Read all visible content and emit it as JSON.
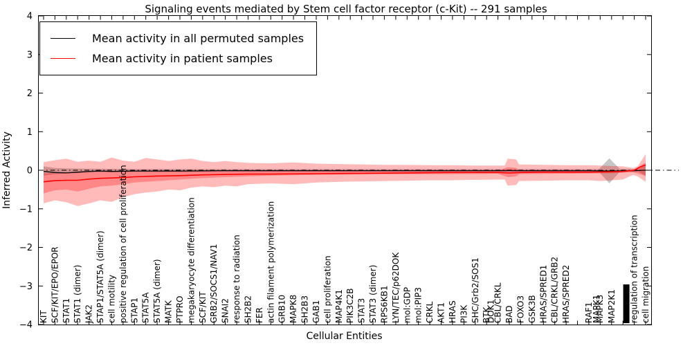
{
  "figure": {
    "title": "Signaling events mediated by Stem cell factor receptor (c-Kit) -- 291 samples",
    "xlabel": "Cellular Entities",
    "ylabel": "Inferred Activity",
    "samples_count": "291"
  },
  "legend": {
    "entries": [
      {
        "label": "Mean activity in all permuted samples",
        "color": "#000000"
      },
      {
        "label": "Mean activity in patient samples",
        "color": "#ff0000"
      }
    ]
  },
  "chart_data": {
    "type": "line",
    "title": "Signaling events mediated by Stem cell factor receptor (c-Kit) -- 291 samples",
    "xlabel": "Cellular Entities",
    "ylabel": "Inferred Activity",
    "ylim": [
      -4,
      4
    ],
    "grid": false,
    "legend_position": "upper left",
    "y_ticks": [
      {
        "v": 4,
        "label": "4"
      },
      {
        "v": 3,
        "label": "3"
      },
      {
        "v": 2,
        "label": "2"
      },
      {
        "v": 1,
        "label": "1"
      },
      {
        "v": 0,
        "label": "0"
      },
      {
        "v": -1,
        "label": "−1"
      },
      {
        "v": -2,
        "label": "−2"
      },
      {
        "v": -3,
        "label": "−3"
      },
      {
        "v": -4,
        "label": "−4"
      }
    ],
    "zero_line": {
      "y": 0,
      "style": "dash-dot",
      "color": "#000000"
    },
    "x_tick_labels": [
      {
        "label": "KIT",
        "i": 0
      },
      {
        "label": "SCF/KIT/EPO/EPOR",
        "i": 1
      },
      {
        "label": "STAT1",
        "i": 2
      },
      {
        "label": "STAT1 (dimer)",
        "i": 3
      },
      {
        "label": "JAK2",
        "i": 4
      },
      {
        "label": "STAP1/STAT5A (dimer)",
        "i": 5
      },
      {
        "label": "cell motility",
        "i": 6
      },
      {
        "label": "positive regulation of cell proliferation",
        "i": 7
      },
      {
        "label": "STAP1",
        "i": 8
      },
      {
        "label": "STAT5A",
        "i": 9
      },
      {
        "label": "STAT5A (dimer)",
        "i": 10
      },
      {
        "label": "MATK",
        "i": 11
      },
      {
        "label": "PTPRO",
        "i": 12
      },
      {
        "label": "megakaryocyte differentiation",
        "i": 13
      },
      {
        "label": "SCF/KIT",
        "i": 14
      },
      {
        "label": "GRB2/SOCS1/NAV1",
        "i": 15
      },
      {
        "label": "SNAI2",
        "i": 16
      },
      {
        "label": "response to radiation",
        "i": 17
      },
      {
        "label": "SH2B2",
        "i": 18
      },
      {
        "label": "FER",
        "i": 19
      },
      {
        "label": "actin filament polymerization",
        "i": 20
      },
      {
        "label": "GRB10",
        "i": 21
      },
      {
        "label": "MAPK8",
        "i": 22
      },
      {
        "label": "SH2B3",
        "i": 23
      },
      {
        "label": "GAB1",
        "i": 24
      },
      {
        "label": "cell proliferation",
        "i": 25
      },
      {
        "label": "MAP4K1",
        "i": 26
      },
      {
        "label": "PIK3C2B",
        "i": 27
      },
      {
        "label": "STAT3",
        "i": 28
      },
      {
        "label": "STAT3 (dimer)",
        "i": 29
      },
      {
        "label": "RPS6KB1",
        "i": 30
      },
      {
        "label": "LYN/TEC/p62DOK",
        "i": 31
      },
      {
        "label": "mol:GDP",
        "i": 32
      },
      {
        "label": "mol:PIP3",
        "i": 33
      },
      {
        "label": "CRKL",
        "i": 34
      },
      {
        "label": "AKT1",
        "i": 35
      },
      {
        "label": "HRAS",
        "i": 36
      },
      {
        "label": "PI3K",
        "i": 37
      },
      {
        "label": "SHC/Grb2/SOS1",
        "i": 38
      },
      {
        "label": "BTK",
        "i": 39
      },
      {
        "label": "DOK1",
        "i": 39.38
      },
      {
        "label": "CBL/CRKL",
        "i": 40
      },
      {
        "label": "BAD",
        "i": 41
      },
      {
        "label": "FOXO3",
        "i": 42
      },
      {
        "label": "GSK3B",
        "i": 43
      },
      {
        "label": "HRAS/SPRED1",
        "i": 44
      },
      {
        "label": "CBL/CRKL/GRB2",
        "i": 45
      },
      {
        "label": "HRAS/SPRED2",
        "i": 46
      },
      {
        "label": "RAF1",
        "i": 48
      },
      {
        "label": "MAPK1",
        "i": 48.68
      },
      {
        "label": "MAPK3",
        "i": 48.98
      },
      {
        "label": "MAP2K1",
        "i": 50
      },
      {
        "label": "regulation of transcription",
        "i": 52
      },
      {
        "label": "cell migration",
        "i": 53
      }
    ],
    "overlap_blob": {
      "i": 51.3,
      "note": "several unreadable overlapping tick labels",
      "width": 9,
      "height": 56
    },
    "series": [
      {
        "name": "permuted-band",
        "type": "band",
        "color": "rgba(128,128,128,0.45)",
        "upper": [
          [
            0,
            0.1
          ],
          [
            1,
            0.06
          ],
          [
            2,
            0.05
          ],
          [
            4,
            0.04
          ],
          [
            8,
            0.03
          ],
          [
            20,
            0.03
          ],
          [
            40,
            0.03
          ],
          [
            48.9,
            0.03
          ],
          [
            49.8,
            0.31
          ],
          [
            50.7,
            0.04
          ],
          [
            51.5,
            0.03
          ],
          [
            52.4,
            0.03
          ],
          [
            53,
            0.13
          ]
        ],
        "lower": [
          [
            0,
            -0.14
          ],
          [
            1,
            -0.1
          ],
          [
            2,
            -0.08
          ],
          [
            4,
            -0.06
          ],
          [
            8,
            -0.05
          ],
          [
            20,
            -0.04
          ],
          [
            40,
            -0.04
          ],
          [
            48.9,
            -0.04
          ],
          [
            49.8,
            -0.34
          ],
          [
            50.7,
            -0.05
          ],
          [
            51.5,
            -0.04
          ],
          [
            52.4,
            -0.04
          ],
          [
            53,
            -0.15
          ]
        ]
      },
      {
        "name": "patient-band-outer",
        "type": "band",
        "color": "rgba(255,0,0,0.27)",
        "upper": [
          [
            0,
            0.21
          ],
          [
            1,
            0.26
          ],
          [
            2,
            0.3
          ],
          [
            3,
            0.22
          ],
          [
            4,
            0.25
          ],
          [
            5,
            0.22
          ],
          [
            6,
            0.33
          ],
          [
            7,
            0.25
          ],
          [
            8,
            0.22
          ],
          [
            9,
            0.32
          ],
          [
            10,
            0.28
          ],
          [
            11,
            0.24
          ],
          [
            12,
            0.28
          ],
          [
            13,
            0.3
          ],
          [
            14,
            0.24
          ],
          [
            15,
            0.21
          ],
          [
            16,
            0.24
          ],
          [
            17,
            0.21
          ],
          [
            18,
            0.19
          ],
          [
            20,
            0.18
          ],
          [
            22,
            0.2
          ],
          [
            24,
            0.17
          ],
          [
            26,
            0.16
          ],
          [
            28,
            0.15
          ],
          [
            30,
            0.14
          ],
          [
            32,
            0.14
          ],
          [
            34,
            0.13
          ],
          [
            36,
            0.13
          ],
          [
            38,
            0.12
          ],
          [
            40.6,
            0.12
          ],
          [
            40.85,
            0.3
          ],
          [
            41.6,
            0.28
          ],
          [
            41.85,
            0.15
          ],
          [
            44,
            0.14
          ],
          [
            46,
            0.13
          ],
          [
            48,
            0.13
          ],
          [
            49,
            0.12
          ],
          [
            50,
            0.11
          ],
          [
            51,
            0.1
          ],
          [
            51.9,
            0.06
          ],
          [
            52.3,
            0.1
          ],
          [
            53,
            0.42
          ]
        ],
        "lower": [
          [
            0,
            -0.86
          ],
          [
            1,
            -0.78
          ],
          [
            2,
            -0.83
          ],
          [
            3,
            -0.93
          ],
          [
            4,
            -0.86
          ],
          [
            5,
            -0.78
          ],
          [
            6,
            -0.82
          ],
          [
            7,
            -0.7
          ],
          [
            8,
            -0.62
          ],
          [
            9,
            -0.58
          ],
          [
            10,
            -0.55
          ],
          [
            11,
            -0.5
          ],
          [
            12,
            -0.52
          ],
          [
            13,
            -0.45
          ],
          [
            14,
            -0.42
          ],
          [
            15,
            -0.44
          ],
          [
            16,
            -0.4
          ],
          [
            17,
            -0.42
          ],
          [
            18,
            -0.36
          ],
          [
            20,
            -0.34
          ],
          [
            22,
            -0.36
          ],
          [
            24,
            -0.32
          ],
          [
            26,
            -0.3
          ],
          [
            28,
            -0.29
          ],
          [
            30,
            -0.28
          ],
          [
            32,
            -0.27
          ],
          [
            34,
            -0.26
          ],
          [
            36,
            -0.26
          ],
          [
            38,
            -0.25
          ],
          [
            40.6,
            -0.24
          ],
          [
            40.85,
            -0.4
          ],
          [
            41.6,
            -0.38
          ],
          [
            41.85,
            -0.28
          ],
          [
            44,
            -0.27
          ],
          [
            46,
            -0.26
          ],
          [
            48,
            -0.26
          ],
          [
            49,
            -0.28
          ],
          [
            50,
            -0.26
          ],
          [
            51,
            -0.24
          ],
          [
            51.9,
            -0.12
          ],
          [
            52.3,
            -0.16
          ],
          [
            53,
            -0.3
          ]
        ]
      },
      {
        "name": "patient-band-inner",
        "type": "band",
        "color": "rgba(255,0,0,0.27)",
        "upper": [
          [
            0,
            -0.08
          ],
          [
            2,
            -0.06
          ],
          [
            4,
            -0.05
          ],
          [
            6,
            -0.04
          ],
          [
            8,
            -0.04
          ],
          [
            12,
            -0.03
          ],
          [
            16,
            -0.03
          ],
          [
            20,
            -0.02
          ],
          [
            30,
            -0.02
          ],
          [
            40,
            -0.02
          ],
          [
            40.85,
            0.08
          ],
          [
            41.6,
            0.06
          ],
          [
            41.85,
            -0.01
          ],
          [
            50,
            -0.01
          ],
          [
            51.9,
            0.0
          ],
          [
            53,
            0.2
          ]
        ],
        "lower": [
          [
            0,
            -0.6
          ],
          [
            1,
            -0.52
          ],
          [
            2,
            -0.5
          ],
          [
            3,
            -0.55
          ],
          [
            4,
            -0.48
          ],
          [
            5,
            -0.42
          ],
          [
            6,
            -0.4
          ],
          [
            7,
            -0.36
          ],
          [
            8,
            -0.32
          ],
          [
            10,
            -0.28
          ],
          [
            12,
            -0.24
          ],
          [
            14,
            -0.2
          ],
          [
            16,
            -0.18
          ],
          [
            18,
            -0.16
          ],
          [
            20,
            -0.14
          ],
          [
            24,
            -0.12
          ],
          [
            28,
            -0.11
          ],
          [
            32,
            -0.1
          ],
          [
            36,
            -0.1
          ],
          [
            40,
            -0.09
          ],
          [
            40.85,
            -0.18
          ],
          [
            41.6,
            -0.16
          ],
          [
            41.85,
            -0.1
          ],
          [
            46,
            -0.09
          ],
          [
            50,
            -0.08
          ],
          [
            51.9,
            -0.05
          ],
          [
            53,
            -0.15
          ]
        ]
      },
      {
        "name": "Mean activity in all permuted samples",
        "type": "line",
        "color": "#000000",
        "points": [
          [
            0,
            -0.03
          ],
          [
            1,
            -0.06
          ],
          [
            2,
            -0.07
          ],
          [
            3,
            -0.05
          ],
          [
            4,
            -0.03
          ],
          [
            5,
            -0.02
          ],
          [
            6,
            -0.03
          ],
          [
            8,
            -0.02
          ],
          [
            12,
            -0.02
          ],
          [
            16,
            -0.01
          ],
          [
            24,
            -0.01
          ],
          [
            32,
            -0.01
          ],
          [
            40,
            -0.01
          ],
          [
            48,
            -0.01
          ],
          [
            50,
            -0.02
          ],
          [
            52,
            -0.01
          ],
          [
            53,
            0.0
          ]
        ]
      },
      {
        "name": "Mean activity in patient samples",
        "type": "line",
        "color": "#ff0000",
        "points": [
          [
            0,
            -0.3
          ],
          [
            1,
            -0.27
          ],
          [
            2,
            -0.26
          ],
          [
            3,
            -0.26
          ],
          [
            4,
            -0.23
          ],
          [
            5,
            -0.21
          ],
          [
            6,
            -0.2
          ],
          [
            7,
            -0.19
          ],
          [
            8,
            -0.17
          ],
          [
            10,
            -0.15
          ],
          [
            12,
            -0.14
          ],
          [
            14,
            -0.12
          ],
          [
            16,
            -0.11
          ],
          [
            18,
            -0.1
          ],
          [
            20,
            -0.1
          ],
          [
            24,
            -0.09
          ],
          [
            28,
            -0.08
          ],
          [
            32,
            -0.07
          ],
          [
            36,
            -0.06
          ],
          [
            40,
            -0.06
          ],
          [
            41,
            -0.07
          ],
          [
            42,
            -0.06
          ],
          [
            44,
            -0.05
          ],
          [
            46,
            -0.05
          ],
          [
            48,
            -0.05
          ],
          [
            50,
            -0.04
          ],
          [
            51,
            -0.03
          ],
          [
            52,
            0.0
          ],
          [
            52.5,
            0.08
          ],
          [
            53,
            0.14
          ]
        ]
      }
    ]
  }
}
